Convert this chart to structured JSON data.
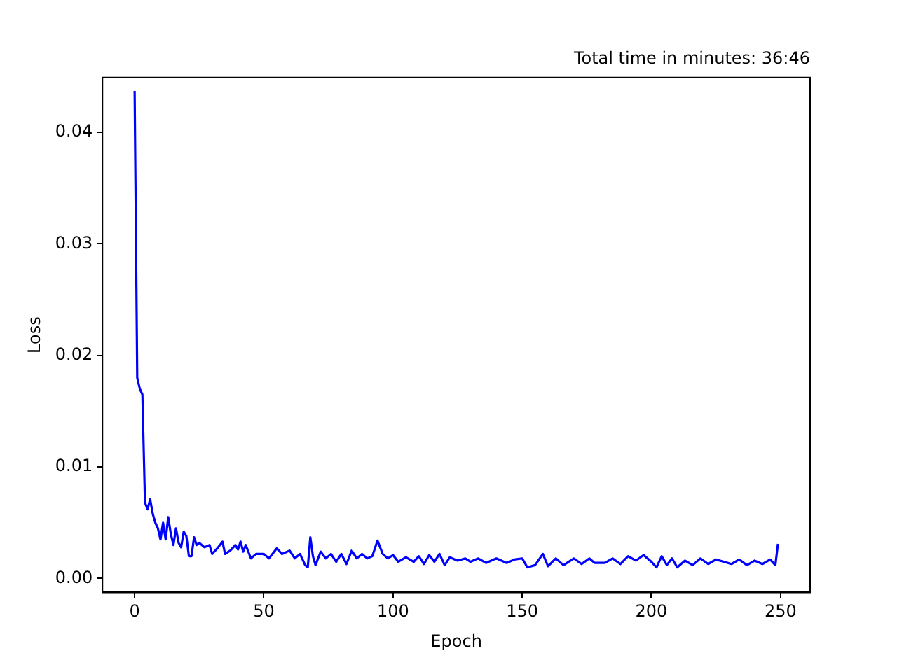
{
  "chart_data": {
    "type": "line",
    "title": "Total time in minutes: 36:46",
    "xlabel": "Epoch",
    "ylabel": "Loss",
    "x": [
      0,
      1,
      2,
      3,
      4,
      5,
      6,
      7,
      8,
      9,
      10,
      11,
      12,
      13,
      14,
      15,
      16,
      17,
      18,
      19,
      20,
      21,
      22,
      23,
      24,
      25,
      27,
      29,
      30,
      32,
      34,
      35,
      37,
      39,
      40,
      41,
      42,
      43,
      45,
      47,
      50,
      52,
      55,
      57,
      60,
      62,
      64,
      66,
      67,
      68,
      69,
      70,
      72,
      74,
      76,
      78,
      80,
      82,
      84,
      86,
      88,
      90,
      92,
      94,
      96,
      98,
      100,
      102,
      105,
      108,
      110,
      112,
      114,
      116,
      118,
      120,
      122,
      125,
      128,
      130,
      133,
      136,
      140,
      144,
      147,
      150,
      152,
      155,
      158,
      160,
      163,
      166,
      170,
      173,
      176,
      178,
      182,
      185,
      188,
      191,
      194,
      197,
      200,
      202,
      204,
      206,
      208,
      210,
      213,
      216,
      219,
      222,
      225,
      228,
      231,
      234,
      237,
      240,
      243,
      246,
      248,
      249
    ],
    "series": [
      {
        "color": "#0000ff",
        "values": [
          0.0437,
          0.018,
          0.017,
          0.0165,
          0.0068,
          0.0062,
          0.0071,
          0.0058,
          0.005,
          0.0045,
          0.0035,
          0.005,
          0.0035,
          0.0055,
          0.004,
          0.003,
          0.0045,
          0.0032,
          0.0028,
          0.0042,
          0.0038,
          0.002,
          0.002,
          0.0037,
          0.003,
          0.0032,
          0.0028,
          0.003,
          0.0022,
          0.0027,
          0.0033,
          0.0022,
          0.0025,
          0.003,
          0.0026,
          0.0033,
          0.0024,
          0.003,
          0.0018,
          0.0022,
          0.0022,
          0.0018,
          0.0027,
          0.0022,
          0.0025,
          0.0018,
          0.0022,
          0.0012,
          0.001,
          0.0037,
          0.002,
          0.0012,
          0.0024,
          0.0018,
          0.0022,
          0.0015,
          0.0022,
          0.0013,
          0.0025,
          0.0018,
          0.0022,
          0.0018,
          0.002,
          0.0034,
          0.0022,
          0.0018,
          0.0021,
          0.0015,
          0.0019,
          0.0015,
          0.002,
          0.0013,
          0.0021,
          0.0015,
          0.0022,
          0.0012,
          0.0019,
          0.0016,
          0.0018,
          0.0015,
          0.0018,
          0.0014,
          0.0018,
          0.0014,
          0.0017,
          0.0018,
          0.001,
          0.0012,
          0.0022,
          0.0011,
          0.0018,
          0.0012,
          0.0018,
          0.0013,
          0.0018,
          0.0014,
          0.0014,
          0.0018,
          0.0013,
          0.002,
          0.0016,
          0.0021,
          0.0015,
          0.001,
          0.002,
          0.0012,
          0.0018,
          0.001,
          0.0016,
          0.0012,
          0.0018,
          0.0013,
          0.0017,
          0.0015,
          0.0013,
          0.0017,
          0.0012,
          0.0016,
          0.0013,
          0.0017,
          0.0012,
          0.0031
        ]
      }
    ],
    "xlim": [
      -12.45,
      261.45
    ],
    "ylim": [
      -0.00125,
      0.0449
    ],
    "xticks": [
      0,
      50,
      100,
      150,
      200,
      250
    ],
    "yticks": [
      {
        "value": 0,
        "label": "0.00"
      },
      {
        "value": 0.01,
        "label": "0.01"
      },
      {
        "value": 0.02,
        "label": "0.02"
      },
      {
        "value": 0.03,
        "label": "0.03"
      },
      {
        "value": 0.04,
        "label": "0.04"
      }
    ]
  }
}
